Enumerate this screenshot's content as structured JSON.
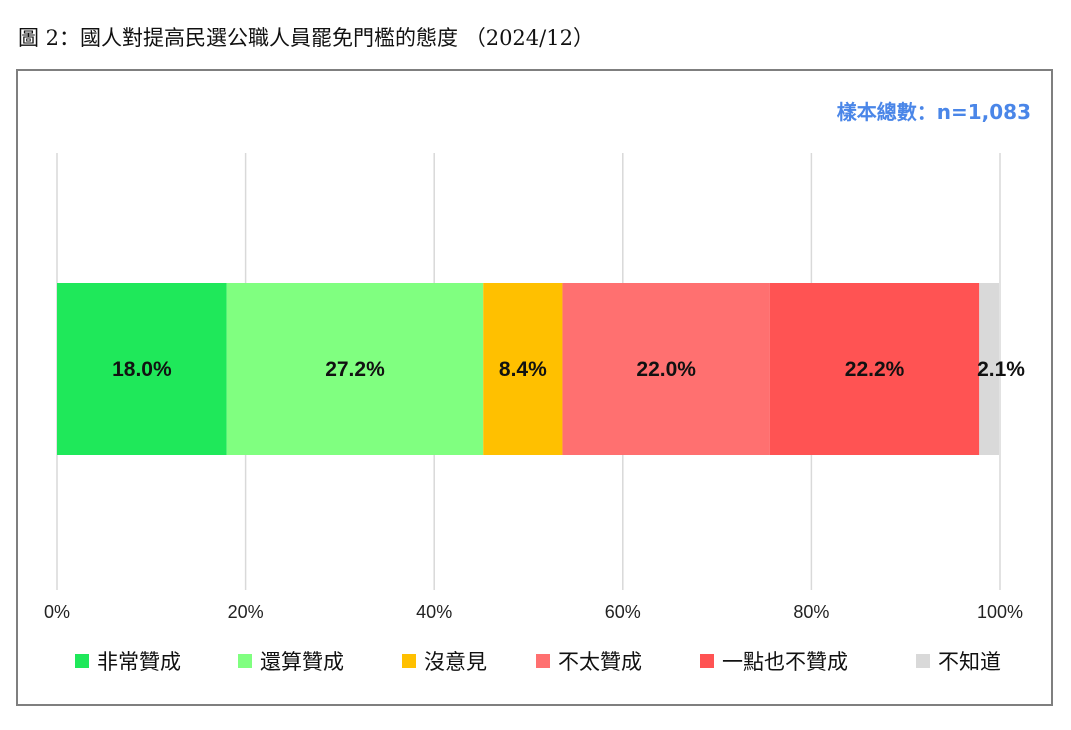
{
  "chart_data": {
    "type": "bar",
    "orientation": "horizontal",
    "stacked": true,
    "title": "圖 2：國人對提高民選公職人員罷免門檻的態度 （2024/12）",
    "sample_note": "樣本總數：n=1,083",
    "xlim": [
      0,
      100
    ],
    "x_ticks": [
      "0%",
      "20%",
      "40%",
      "60%",
      "80%",
      "100%"
    ],
    "grid": "vertical",
    "legend_position": "bottom",
    "series": [
      {
        "name": "非常贊成",
        "value": 18.0,
        "label": "18.0%",
        "color": "#1fe85a"
      },
      {
        "name": "還算贊成",
        "value": 27.2,
        "label": "27.2%",
        "color": "#80ff80"
      },
      {
        "name": "沒意見",
        "value": 8.4,
        "label": "8.4%",
        "color": "#ffc000"
      },
      {
        "name": "不太贊成",
        "value": 22.0,
        "label": "22.0%",
        "color": "#ff7070"
      },
      {
        "name": "一點也不贊成",
        "value": 22.2,
        "label": "22.2%",
        "color": "#ff5353"
      },
      {
        "name": "不知道",
        "value": 2.1,
        "label": "2.1%",
        "color": "#d9d9d9"
      }
    ],
    "colors": {
      "grid": "#d9d9d9",
      "sample_note": "#4a86e8",
      "frame": "#7f7f7f"
    }
  }
}
